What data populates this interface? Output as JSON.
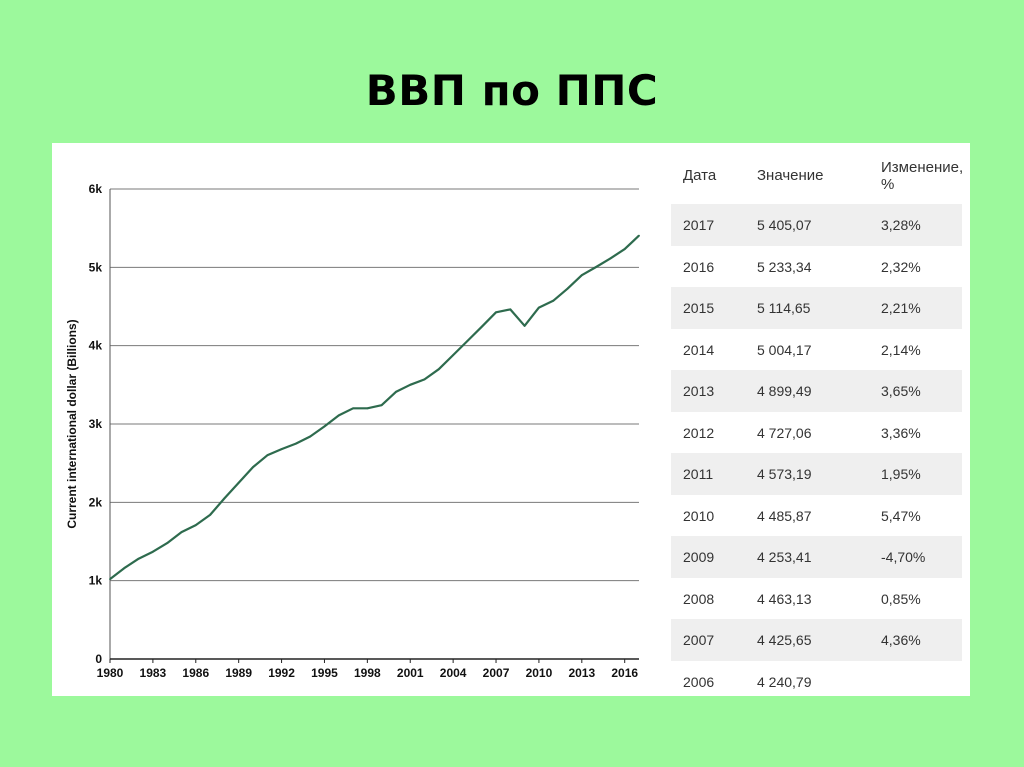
{
  "slide": {
    "title": "ВВП по ППС"
  },
  "chart_data": {
    "type": "line",
    "ylabel": "Current international dollar (Billions)",
    "ylim": [
      0,
      6000
    ],
    "y_ticks": [
      "0",
      "1k",
      "2k",
      "3k",
      "4k",
      "5k",
      "6k"
    ],
    "y_tick_values": [
      0,
      1000,
      2000,
      3000,
      4000,
      5000,
      6000
    ],
    "x_ticks": [
      "1980",
      "1983",
      "1986",
      "1989",
      "1992",
      "1995",
      "1998",
      "2001",
      "2004",
      "2007",
      "2010",
      "2013",
      "2016"
    ],
    "xlim": [
      1980,
      2017
    ],
    "grid": true,
    "line_color": "#2e6b4e",
    "series": [
      {
        "x": [
          1980,
          1981,
          1982,
          1983,
          1984,
          1985,
          1986,
          1987,
          1988,
          1989,
          1990,
          1991,
          1992,
          1993,
          1994,
          1995,
          1996,
          1997,
          1998,
          1999,
          2000,
          2001,
          2002,
          2003,
          2004,
          2005,
          2006,
          2007,
          2008,
          2009,
          2010,
          2011,
          2012,
          2013,
          2014,
          2015,
          2016,
          2017
        ],
        "values": [
          1020,
          1160,
          1280,
          1370,
          1480,
          1620,
          1710,
          1840,
          2050,
          2250,
          2450,
          2600,
          2680,
          2750,
          2840,
          2970,
          3110,
          3200,
          3200,
          3240,
          3410,
          3500,
          3570,
          3700,
          3880,
          4060,
          4240.79,
          4425.65,
          4463.13,
          4253.41,
          4485.87,
          4573.19,
          4727.06,
          4899.49,
          5004.17,
          5114.65,
          5233.34,
          5405.07
        ]
      }
    ]
  },
  "table": {
    "headers": {
      "date": "Дата",
      "value": "Значение",
      "change": "Изменение, %"
    },
    "rows": [
      {
        "date": "2017",
        "value": "5 405,07",
        "change": "3,28%"
      },
      {
        "date": "2016",
        "value": "5 233,34",
        "change": "2,32%"
      },
      {
        "date": "2015",
        "value": "5 114,65",
        "change": "2,21%"
      },
      {
        "date": "2014",
        "value": "5 004,17",
        "change": "2,14%"
      },
      {
        "date": "2013",
        "value": "4 899,49",
        "change": "3,65%"
      },
      {
        "date": "2012",
        "value": "4 727,06",
        "change": "3,36%"
      },
      {
        "date": "2011",
        "value": "4 573,19",
        "change": "1,95%"
      },
      {
        "date": "2010",
        "value": "4 485,87",
        "change": "5,47%"
      },
      {
        "date": "2009",
        "value": "4 253,41",
        "change": "-4,70%"
      },
      {
        "date": "2008",
        "value": "4 463,13",
        "change": "0,85%"
      },
      {
        "date": "2007",
        "value": "4 425,65",
        "change": "4,36%"
      },
      {
        "date": "2006",
        "value": "4 240,79",
        "change": ""
      }
    ]
  }
}
